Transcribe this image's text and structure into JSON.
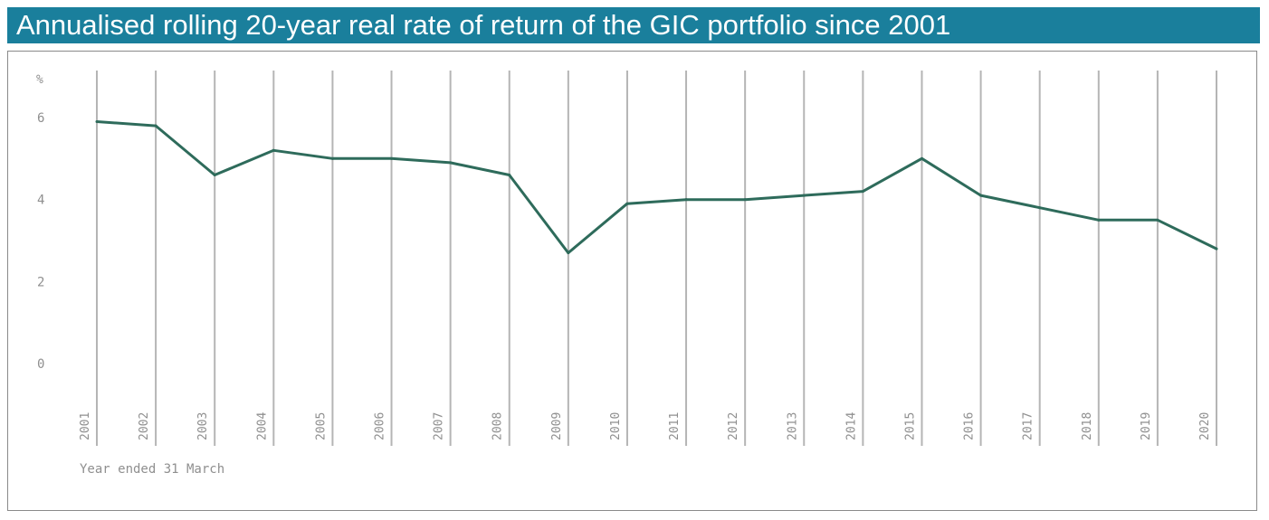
{
  "chart_data": {
    "type": "line",
    "title": "Annualised rolling 20-year real rate of return of the GIC portfolio since 2001",
    "ylabel": "%",
    "xlabel": "Year ended 31 March",
    "ylim": [
      0,
      6
    ],
    "yticks": [
      0,
      2,
      4,
      6
    ],
    "x": [
      "2001",
      "2002",
      "2003",
      "2004",
      "2005",
      "2006",
      "2007",
      "2008",
      "2009",
      "2010",
      "2011",
      "2012",
      "2013",
      "2014",
      "2015",
      "2016",
      "2017",
      "2018",
      "2019",
      "2020"
    ],
    "series": [
      {
        "name": "Annualised rolling 20-year real rate of return",
        "values": [
          5.9,
          5.8,
          4.6,
          5.2,
          5.0,
          5.0,
          4.9,
          4.6,
          2.7,
          3.9,
          4.0,
          4.0,
          4.1,
          4.2,
          5.0,
          4.1,
          3.8,
          3.5,
          3.5,
          2.8
        ]
      }
    ],
    "colors": {
      "line": "#2e6b5b",
      "grid": "#b5b5b5",
      "axis_text": "#8f8f8f",
      "title_bg": "#1a7f9c"
    }
  }
}
